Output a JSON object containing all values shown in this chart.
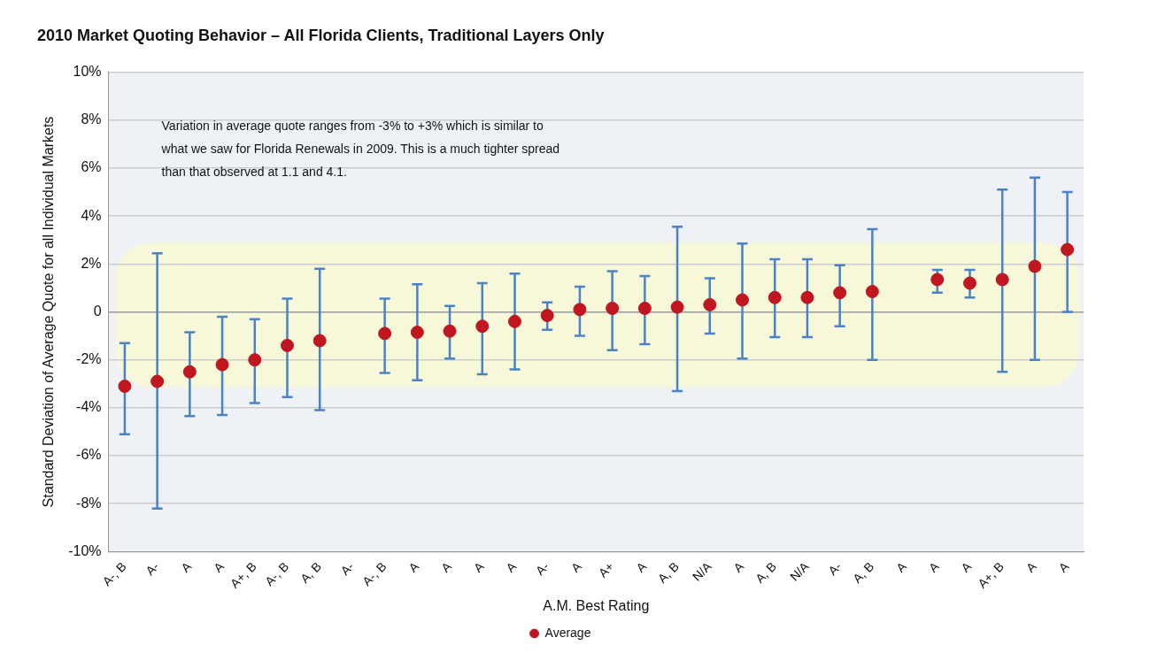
{
  "chart_data": {
    "type": "scatter",
    "title": "2010 Market Quoting Behavior – All Florida Clients, Traditional Layers Only",
    "xlabel": "A.M. Best Rating",
    "ylabel": "Standard Deviation of Average Quote for all Individual Markets",
    "categories": [
      "A-, B",
      "A-",
      "A",
      "A",
      "A+, B",
      "A-, B",
      "A, B",
      "A-",
      "A-, B",
      "A",
      "A",
      "A",
      "A",
      "A-",
      "A",
      "A+",
      "A",
      "A, B",
      "N/A",
      "A",
      "A, B",
      "N/A",
      "A-",
      "A, B",
      "A",
      "A",
      "A",
      "A+, B",
      "A",
      "A"
    ],
    "series": [
      {
        "name": "Average",
        "color": "#c0161f",
        "values": [
          -3.1,
          -2.9,
          -2.5,
          -2.2,
          -2.0,
          -1.4,
          -1.2,
          null,
          -0.9,
          -0.85,
          -0.8,
          -0.6,
          -0.4,
          -0.15,
          0.1,
          0.15,
          0.15,
          0.2,
          0.3,
          0.5,
          0.6,
          0.6,
          0.8,
          0.85,
          null,
          1.35,
          1.2,
          1.35,
          1.9,
          2.6
        ],
        "errors": [
          [
            -5.1,
            -1.3
          ],
          [
            -8.2,
            2.45
          ],
          [
            -4.35,
            -0.85
          ],
          [
            -4.3,
            -0.2
          ],
          [
            -3.8,
            -0.3
          ],
          [
            -3.55,
            0.55
          ],
          [
            -4.1,
            1.8
          ],
          null,
          [
            -2.55,
            0.55
          ],
          [
            -2.85,
            1.15
          ],
          [
            -1.95,
            0.25
          ],
          [
            -2.6,
            1.2
          ],
          [
            -2.4,
            1.6
          ],
          [
            -0.75,
            0.4
          ],
          [
            -1.0,
            1.05
          ],
          [
            -1.6,
            1.7
          ],
          [
            -1.35,
            1.5
          ],
          [
            -3.3,
            3.55
          ],
          [
            -0.9,
            1.4
          ],
          [
            -1.95,
            2.85
          ],
          [
            -1.05,
            2.2
          ],
          [
            -1.05,
            2.2
          ],
          [
            -0.6,
            1.95
          ],
          [
            -2.0,
            3.45
          ],
          null,
          [
            0.8,
            1.75
          ],
          [
            0.6,
            1.75
          ],
          [
            -2.5,
            5.1
          ],
          [
            -2.0,
            5.6
          ],
          [
            0.0,
            5.0
          ]
        ]
      }
    ],
    "ylim": [
      -10,
      10
    ],
    "yticks": [
      {
        "value": -10,
        "label": "-10%"
      },
      {
        "value": -8,
        "label": "-8%"
      },
      {
        "value": -6,
        "label": "-6%"
      },
      {
        "value": -4,
        "label": "-4%"
      },
      {
        "value": -2,
        "label": "-2%"
      },
      {
        "value": 0,
        "label": "0"
      },
      {
        "value": 2,
        "label": "2%"
      },
      {
        "value": 4,
        "label": "4%"
      },
      {
        "value": 6,
        "label": "6%"
      },
      {
        "value": 8,
        "label": "8%"
      },
      {
        "value": 10,
        "label": "10%"
      }
    ],
    "bands": [
      {
        "axis": "y",
        "from": -3.15,
        "to": 2.9,
        "color": "#f7f8da"
      }
    ],
    "annotations": [
      "Variation in average quote ranges from -3% to +3% which is similar to what we saw for Florida Renewals in 2009. This is a much tighter spread than that observed at 1.1 and 4.1."
    ],
    "grid": "y",
    "legend": "bottom",
    "marker": "circle"
  }
}
